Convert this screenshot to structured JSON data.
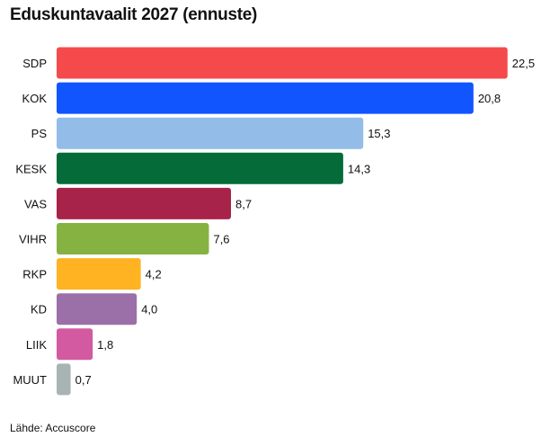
{
  "title": "Eduskuntavaalit 2027 (ennuste)",
  "source": "Lähde: Accuscore",
  "chart_data": {
    "type": "bar",
    "orientation": "horizontal",
    "title": "Eduskuntavaalit 2027 (ennuste)",
    "xlabel": "",
    "ylabel": "",
    "categories": [
      "SDP",
      "KOK",
      "PS",
      "KESK",
      "VAS",
      "VIHR",
      "RKP",
      "KD",
      "LIIK",
      "MUUT"
    ],
    "values": [
      22.5,
      20.8,
      15.3,
      14.3,
      8.7,
      7.6,
      4.2,
      4.0,
      1.8,
      0.7
    ],
    "value_labels": [
      "22,5",
      "20,8",
      "15,3",
      "14,3",
      "8,7",
      "7,6",
      "4,2",
      "4,0",
      "1,8",
      "0,7"
    ],
    "colors": [
      "#f54a4c",
      "#1155ff",
      "#93bde8",
      "#046b39",
      "#a82349",
      "#86b241",
      "#ffb222",
      "#9b70a8",
      "#d35aa0",
      "#a8b4b4"
    ],
    "grid": false,
    "legend": "none"
  }
}
